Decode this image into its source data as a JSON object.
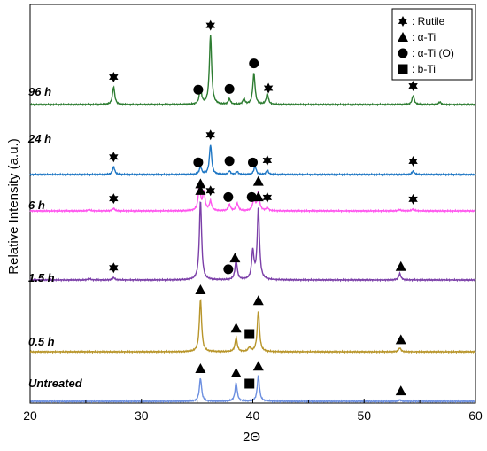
{
  "chart_data": {
    "type": "line",
    "xlabel": "2Θ",
    "ylabel": "Relative Intensity (a.u.)",
    "xlim": [
      20,
      60
    ],
    "xticks": [
      "20",
      "30",
      "40",
      "50",
      "60"
    ],
    "legend": {
      "placement": "top-right",
      "items": [
        {
          "symbol": "star",
          "label": ": Rutile"
        },
        {
          "symbol": "triangle",
          "label": ": α-Ti"
        },
        {
          "symbol": "circle",
          "label": ": α-Ti (O)"
        },
        {
          "symbol": "square",
          "label": ": b-Ti"
        }
      ]
    },
    "series": [
      {
        "name": "96 h",
        "color": "#2e7d32",
        "peaks": [
          [
            27.5,
            0.2
          ],
          [
            35.3,
            0.18
          ],
          [
            36.2,
            0.78
          ],
          [
            37.9,
            0.06
          ],
          [
            39.2,
            0.06
          ],
          [
            40.1,
            0.35
          ],
          [
            41.3,
            0.12
          ],
          [
            54.4,
            0.1
          ],
          [
            56.8,
            0.03
          ]
        ],
        "markers": [
          {
            "x": 27.5,
            "symbol": "star"
          },
          {
            "x": 35.1,
            "symbol": "circle"
          },
          {
            "x": 36.2,
            "symbol": "star"
          },
          {
            "x": 37.9,
            "symbol": "circle"
          },
          {
            "x": 40.1,
            "symbol": "circle"
          },
          {
            "x": 41.4,
            "symbol": "star"
          },
          {
            "x": 54.4,
            "symbol": "star"
          }
        ]
      },
      {
        "name": "24 h",
        "color": "#1f77c4",
        "peaks": [
          [
            27.5,
            0.11
          ],
          [
            35.3,
            0.11
          ],
          [
            36.2,
            0.42
          ],
          [
            37.9,
            0.05
          ],
          [
            38.6,
            0.04
          ],
          [
            40.2,
            0.12
          ],
          [
            41.3,
            0.06
          ],
          [
            54.4,
            0.05
          ]
        ],
        "markers": [
          {
            "x": 27.5,
            "symbol": "star"
          },
          {
            "x": 35.1,
            "symbol": "circle"
          },
          {
            "x": 36.2,
            "symbol": "star"
          },
          {
            "x": 37.9,
            "symbol": "circle"
          },
          {
            "x": 40.0,
            "symbol": "circle"
          },
          {
            "x": 41.3,
            "symbol": "star"
          },
          {
            "x": 54.4,
            "symbol": "star"
          }
        ]
      },
      {
        "name": "6 h",
        "color": "#ff55ee",
        "peaks": [
          [
            25.3,
            0.02
          ],
          [
            27.5,
            0.04
          ],
          [
            35.2,
            0.4
          ],
          [
            35.6,
            0.3
          ],
          [
            36.2,
            0.15
          ],
          [
            37.9,
            0.1
          ],
          [
            38.6,
            0.12
          ],
          [
            40.1,
            0.2
          ],
          [
            40.5,
            0.3
          ],
          [
            41.3,
            0.05
          ],
          [
            53.2,
            0.02
          ],
          [
            54.4,
            0.03
          ]
        ],
        "markers": [
          {
            "x": 27.5,
            "symbol": "star"
          },
          {
            "x": 35.3,
            "symbol": "triangle"
          },
          {
            "x": 36.2,
            "symbol": "star"
          },
          {
            "x": 37.8,
            "symbol": "circle"
          },
          {
            "x": 39.9,
            "symbol": "circle"
          },
          {
            "x": 40.5,
            "symbol": "triangle"
          },
          {
            "x": 41.3,
            "symbol": "star"
          },
          {
            "x": 54.4,
            "symbol": "star"
          }
        ]
      },
      {
        "name": "1.5 h",
        "color": "#7b3fa8",
        "peaks": [
          [
            25.3,
            0.02
          ],
          [
            27.5,
            0.03
          ],
          [
            35.3,
            1.0
          ],
          [
            38.5,
            0.25
          ],
          [
            40.0,
            0.35
          ],
          [
            40.5,
            0.9
          ],
          [
            53.2,
            0.08
          ]
        ],
        "markers": [
          {
            "x": 27.5,
            "symbol": "star"
          },
          {
            "x": 35.3,
            "symbol": "triangle"
          },
          {
            "x": 37.8,
            "symbol": "circle"
          },
          {
            "x": 38.4,
            "symbol": "triangle"
          },
          {
            "x": 40.5,
            "symbol": "triangle"
          },
          {
            "x": 53.3,
            "symbol": "triangle"
          }
        ]
      },
      {
        "name": "0.5 h",
        "color": "#b8952a",
        "peaks": [
          [
            35.3,
            0.95
          ],
          [
            38.5,
            0.25
          ],
          [
            39.7,
            0.08
          ],
          [
            40.5,
            0.75
          ],
          [
            53.2,
            0.07
          ]
        ],
        "markers": [
          {
            "x": 35.3,
            "symbol": "triangle"
          },
          {
            "x": 38.5,
            "symbol": "triangle"
          },
          {
            "x": 39.7,
            "symbol": "square"
          },
          {
            "x": 40.5,
            "symbol": "triangle"
          },
          {
            "x": 53.3,
            "symbol": "triangle"
          }
        ]
      },
      {
        "name": "Untreated",
        "color": "#6c8fe0",
        "peaks": [
          [
            35.3,
            0.5
          ],
          [
            38.5,
            0.4
          ],
          [
            40.5,
            0.55
          ],
          [
            53.2,
            0.03
          ]
        ],
        "markers": [
          {
            "x": 35.3,
            "symbol": "triangle"
          },
          {
            "x": 38.5,
            "symbol": "triangle"
          },
          {
            "x": 39.7,
            "symbol": "square"
          },
          {
            "x": 40.5,
            "symbol": "triangle"
          },
          {
            "x": 53.3,
            "symbol": "triangle"
          }
        ]
      }
    ]
  }
}
